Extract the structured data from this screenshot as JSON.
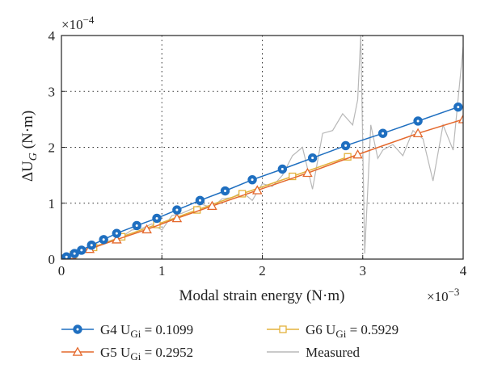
{
  "chart_data": {
    "type": "line",
    "xlabel": "Modal strain energy (N·m)",
    "ylabel": "ΔU",
    "ylabel_sub": "G",
    "ylabel_unit": " (N·m)",
    "x_multiplier": {
      "base": "×10",
      "exp": "−3"
    },
    "y_multiplier": {
      "base": "×10",
      "exp": "−4"
    },
    "xlim": [
      0,
      4
    ],
    "ylim": [
      0,
      4
    ],
    "x_ticks": [
      0,
      1,
      2,
      3,
      4
    ],
    "y_ticks": [
      0,
      1,
      2,
      3,
      4
    ],
    "x_tick_labels": [
      "0",
      "1",
      "2",
      "3",
      "4"
    ],
    "y_tick_labels": [
      "0",
      "1",
      "2",
      "3",
      "4"
    ],
    "grid": "dotted",
    "legend_position": "bottom",
    "series": [
      {
        "name": "G4 U",
        "name_sub": "Gi",
        "name_value": " = 0.1099",
        "color": "#1f6fc0",
        "marker": "circle",
        "x": [
          0,
          0.05,
          0.13,
          0.2,
          0.3,
          0.42,
          0.55,
          0.75,
          0.95,
          1.15,
          1.38,
          1.63,
          1.9,
          2.2,
          2.5,
          2.83,
          3.2,
          3.55,
          3.95
        ],
        "y": [
          0,
          0.04,
          0.1,
          0.16,
          0.25,
          0.35,
          0.46,
          0.6,
          0.73,
          0.88,
          1.05,
          1.22,
          1.42,
          1.61,
          1.81,
          2.03,
          2.25,
          2.47,
          2.72
        ]
      },
      {
        "name": "G5 U",
        "name_sub": "Gi",
        "name_value": " = 0.2952",
        "color": "#e4682c",
        "marker": "triangle",
        "x": [
          0,
          0.1,
          0.28,
          0.55,
          0.85,
          1.15,
          1.5,
          1.95,
          2.45,
          2.95,
          3.55,
          4.0
        ],
        "y": [
          0,
          0.07,
          0.18,
          0.35,
          0.53,
          0.73,
          0.95,
          1.23,
          1.54,
          1.87,
          2.25,
          2.5
        ]
      },
      {
        "name": "G6 U",
        "name_sub": "Gi",
        "name_value": " = 0.5929",
        "color": "#e3b23c",
        "marker": "square",
        "x": [
          0,
          0.12,
          0.32,
          0.6,
          0.95,
          1.35,
          1.8,
          2.3,
          2.85
        ],
        "y": [
          0,
          0.08,
          0.21,
          0.4,
          0.62,
          0.88,
          1.17,
          1.48,
          1.83
        ]
      },
      {
        "name": "Measured",
        "color": "#b8b8b8",
        "marker": "none",
        "x": [
          0,
          0.05,
          0.1,
          0.15,
          0.2,
          0.3,
          0.4,
          0.5,
          0.6,
          0.7,
          0.8,
          0.9,
          1.0,
          1.1,
          1.2,
          1.3,
          1.4,
          1.5,
          1.6,
          1.7,
          1.8,
          1.9,
          2.0,
          2.1,
          2.2,
          2.3,
          2.4,
          2.5,
          2.6,
          2.7,
          2.8,
          2.9,
          2.95,
          2.98,
          3.02,
          3.08,
          3.15,
          3.2,
          3.3,
          3.4,
          3.5,
          3.6,
          3.7,
          3.8,
          3.9,
          4.0
        ],
        "y": [
          0,
          0.03,
          0.07,
          0.1,
          0.14,
          0.22,
          0.27,
          0.34,
          0.4,
          0.52,
          0.55,
          0.63,
          0.52,
          0.78,
          0.82,
          0.9,
          0.98,
          0.92,
          1.08,
          1.1,
          1.2,
          1.05,
          1.35,
          1.3,
          1.5,
          1.85,
          2.0,
          1.25,
          2.25,
          2.3,
          2.6,
          2.4,
          2.85,
          4.0,
          0.1,
          2.4,
          1.8,
          1.95,
          2.05,
          1.85,
          2.3,
          2.15,
          1.4,
          2.4,
          1.95,
          3.8
        ]
      }
    ]
  }
}
